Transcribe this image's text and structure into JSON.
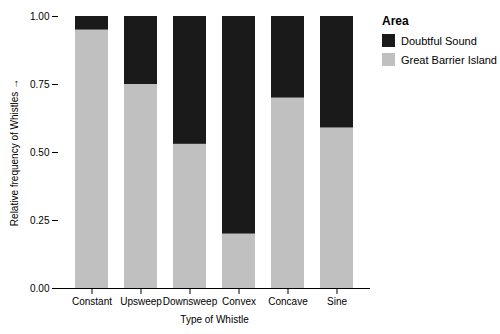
{
  "chart_data": {
    "type": "bar",
    "stacked": true,
    "categories": [
      "Constant",
      "Upsweep",
      "Downsweep",
      "Convex",
      "Concave",
      "Sine"
    ],
    "series": [
      {
        "name": "Great Barrier Island",
        "color": "#c0c0c0",
        "values": [
          0.95,
          0.75,
          0.53,
          0.2,
          0.7,
          0.59
        ]
      },
      {
        "name": "Doubtful Sound",
        "color": "#1a1a1a",
        "values": [
          0.05,
          0.25,
          0.47,
          0.8,
          0.3,
          0.41
        ]
      }
    ],
    "xlabel": "Type of Whistle",
    "ylabel": "Relative frequency of Whistles",
    "legend_title": "Area",
    "legend": "right",
    "grid": false,
    "ylim": [
      0.0,
      1.0
    ],
    "yticks": [
      {
        "value": 0.0,
        "label": "0.00"
      },
      {
        "value": 0.25,
        "label": "0.25"
      },
      {
        "value": 0.5,
        "label": "0.50"
      },
      {
        "value": 0.75,
        "label": "0.75"
      },
      {
        "value": 1.0,
        "label": "1.00"
      }
    ]
  }
}
